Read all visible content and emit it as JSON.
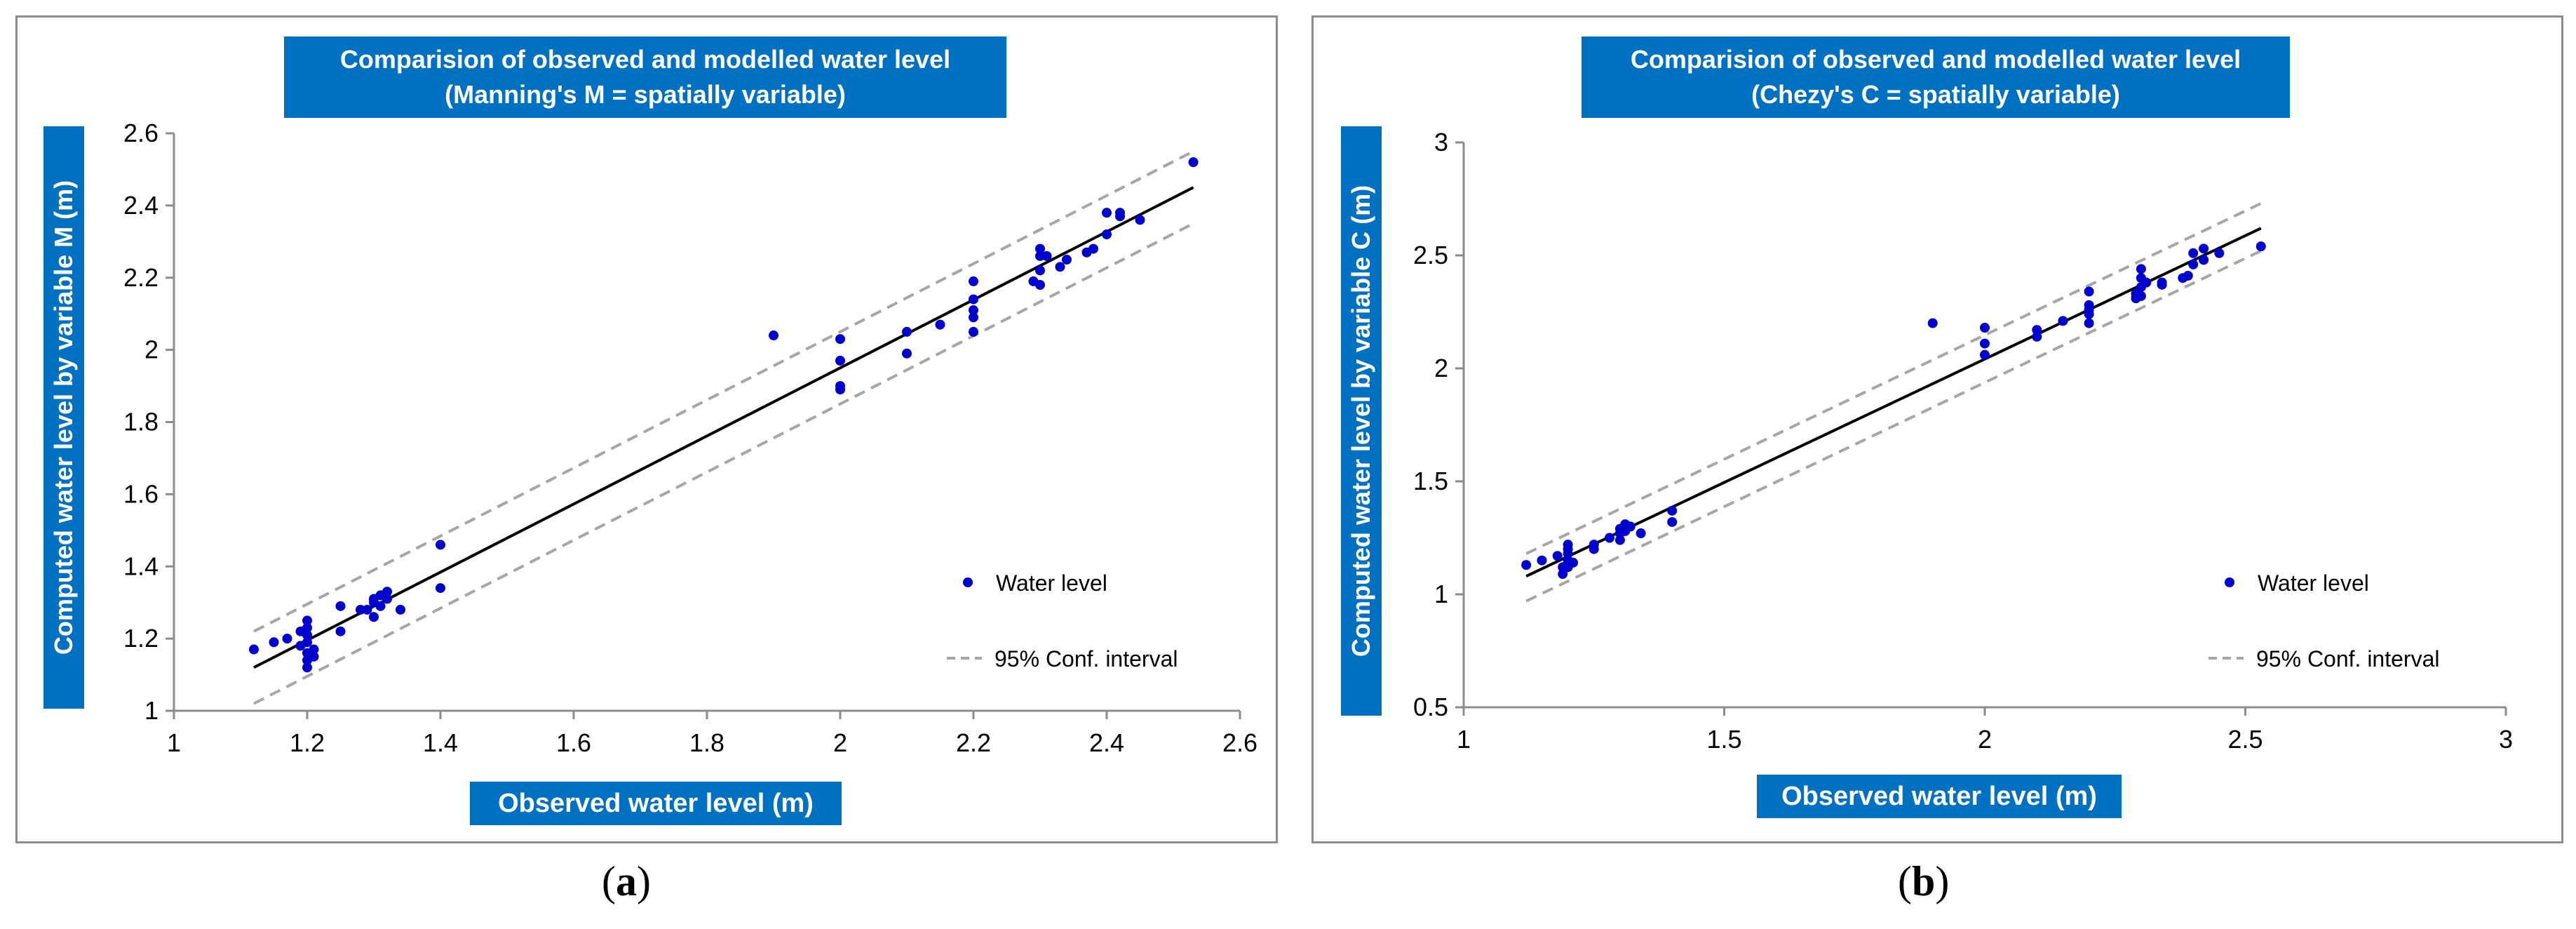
{
  "colors": {
    "accent": "#0070c0",
    "points": "#0000cc",
    "fit": "#000000",
    "ci": "#a6a6a6",
    "frame": "#8c8c8c"
  },
  "captions": {
    "a_letter": "a",
    "b_letter": "b"
  },
  "chart_data": [
    {
      "type": "scatter",
      "title_line1": "Comparision of observed and modelled water level",
      "title_line2": "(Manning's M = spatially variable)",
      "xlabel": "Observed water level (m)",
      "ylabel": "Computed water level by variable M  (m)",
      "xlim": [
        1,
        2.6
      ],
      "ylim": [
        1,
        2.6
      ],
      "xticks": [
        "1",
        "1.2",
        "1.4",
        "1.6",
        "1.8",
        "2",
        "2.2",
        "2.4",
        "2.6"
      ],
      "yticks": [
        "1",
        "1.2",
        "1.4",
        "1.6",
        "1.8",
        "2",
        "2.2",
        "2.4",
        "2.6"
      ],
      "legend": {
        "points_label": "Water level",
        "ci_label": "95% Conf. interval",
        "position": "bottom-right"
      },
      "fit_line": {
        "x": [
          1.12,
          2.53
        ],
        "y": [
          1.12,
          2.45
        ]
      },
      "ci_upper": {
        "x": [
          1.12,
          2.53
        ],
        "y": [
          1.22,
          2.55
        ]
      },
      "ci_lower": {
        "x": [
          1.12,
          2.53
        ],
        "y": [
          1.02,
          2.35
        ]
      },
      "points": [
        [
          1.12,
          1.17
        ],
        [
          1.15,
          1.19
        ],
        [
          1.17,
          1.2
        ],
        [
          1.19,
          1.22
        ],
        [
          1.19,
          1.18
        ],
        [
          1.2,
          1.12
        ],
        [
          1.2,
          1.14
        ],
        [
          1.2,
          1.16
        ],
        [
          1.2,
          1.19
        ],
        [
          1.2,
          1.21
        ],
        [
          1.2,
          1.23
        ],
        [
          1.2,
          1.25
        ],
        [
          1.21,
          1.15
        ],
        [
          1.21,
          1.17
        ],
        [
          1.25,
          1.22
        ],
        [
          1.25,
          1.29
        ],
        [
          1.28,
          1.28
        ],
        [
          1.29,
          1.28
        ],
        [
          1.3,
          1.26
        ],
        [
          1.3,
          1.3
        ],
        [
          1.3,
          1.31
        ],
        [
          1.31,
          1.29
        ],
        [
          1.31,
          1.32
        ],
        [
          1.32,
          1.31
        ],
        [
          1.32,
          1.33
        ],
        [
          1.34,
          1.28
        ],
        [
          1.4,
          1.34
        ],
        [
          1.4,
          1.46
        ],
        [
          1.9,
          2.04
        ],
        [
          2.0,
          1.89
        ],
        [
          2.0,
          1.9
        ],
        [
          2.0,
          1.97
        ],
        [
          2.0,
          2.03
        ],
        [
          2.1,
          1.99
        ],
        [
          2.1,
          2.05
        ],
        [
          2.15,
          2.07
        ],
        [
          2.2,
          2.05
        ],
        [
          2.2,
          2.09
        ],
        [
          2.2,
          2.11
        ],
        [
          2.2,
          2.14
        ],
        [
          2.2,
          2.19
        ],
        [
          2.29,
          2.19
        ],
        [
          2.3,
          2.18
        ],
        [
          2.3,
          2.22
        ],
        [
          2.3,
          2.26
        ],
        [
          2.3,
          2.28
        ],
        [
          2.31,
          2.26
        ],
        [
          2.33,
          2.23
        ],
        [
          2.34,
          2.25
        ],
        [
          2.37,
          2.27
        ],
        [
          2.38,
          2.28
        ],
        [
          2.4,
          2.32
        ],
        [
          2.4,
          2.38
        ],
        [
          2.42,
          2.37
        ],
        [
          2.42,
          2.38
        ],
        [
          2.45,
          2.36
        ],
        [
          2.53,
          2.52
        ]
      ]
    },
    {
      "type": "scatter",
      "title_line1": "Comparision of observed and modelled water level",
      "title_line2": "(Chezy's C = spatially variable)",
      "xlabel": "Observed water level (m)",
      "ylabel": "Computed water level by  variable C (m)",
      "xlim": [
        1,
        3
      ],
      "ylim": [
        0.5,
        3
      ],
      "xticks": [
        "1",
        "1.5",
        "2",
        "2.5",
        "3"
      ],
      "yticks": [
        "0.5",
        "1",
        "1.5",
        "2",
        "2.5",
        "3"
      ],
      "legend": {
        "points_label": "Water level",
        "ci_label": "95% Conf. interval",
        "position": "bottom-right"
      },
      "fit_line": {
        "x": [
          1.12,
          2.53
        ],
        "y": [
          1.08,
          2.62
        ]
      },
      "ci_upper": {
        "x": [
          1.12,
          2.53
        ],
        "y": [
          1.18,
          2.73
        ]
      },
      "ci_lower": {
        "x": [
          1.12,
          2.53
        ],
        "y": [
          0.97,
          2.52
        ]
      },
      "points": [
        [
          1.12,
          1.13
        ],
        [
          1.15,
          1.15
        ],
        [
          1.18,
          1.17
        ],
        [
          1.19,
          1.09
        ],
        [
          1.19,
          1.12
        ],
        [
          1.2,
          1.12
        ],
        [
          1.2,
          1.15
        ],
        [
          1.2,
          1.18
        ],
        [
          1.2,
          1.2
        ],
        [
          1.2,
          1.22
        ],
        [
          1.21,
          1.14
        ],
        [
          1.25,
          1.2
        ],
        [
          1.25,
          1.22
        ],
        [
          1.28,
          1.25
        ],
        [
          1.3,
          1.24
        ],
        [
          1.3,
          1.27
        ],
        [
          1.3,
          1.29
        ],
        [
          1.31,
          1.28
        ],
        [
          1.31,
          1.31
        ],
        [
          1.32,
          1.3
        ],
        [
          1.34,
          1.27
        ],
        [
          1.4,
          1.32
        ],
        [
          1.4,
          1.37
        ],
        [
          1.9,
          2.2
        ],
        [
          2.0,
          2.06
        ],
        [
          2.0,
          2.11
        ],
        [
          2.0,
          2.18
        ],
        [
          2.1,
          2.14
        ],
        [
          2.1,
          2.17
        ],
        [
          2.15,
          2.21
        ],
        [
          2.2,
          2.2
        ],
        [
          2.2,
          2.24
        ],
        [
          2.2,
          2.26
        ],
        [
          2.2,
          2.28
        ],
        [
          2.2,
          2.34
        ],
        [
          2.29,
          2.31
        ],
        [
          2.29,
          2.33
        ],
        [
          2.3,
          2.32
        ],
        [
          2.3,
          2.36
        ],
        [
          2.3,
          2.4
        ],
        [
          2.3,
          2.44
        ],
        [
          2.31,
          2.38
        ],
        [
          2.34,
          2.37
        ],
        [
          2.34,
          2.38
        ],
        [
          2.38,
          2.4
        ],
        [
          2.39,
          2.41
        ],
        [
          2.4,
          2.46
        ],
        [
          2.4,
          2.51
        ],
        [
          2.42,
          2.48
        ],
        [
          2.42,
          2.53
        ],
        [
          2.45,
          2.51
        ],
        [
          2.53,
          2.54
        ]
      ]
    }
  ]
}
